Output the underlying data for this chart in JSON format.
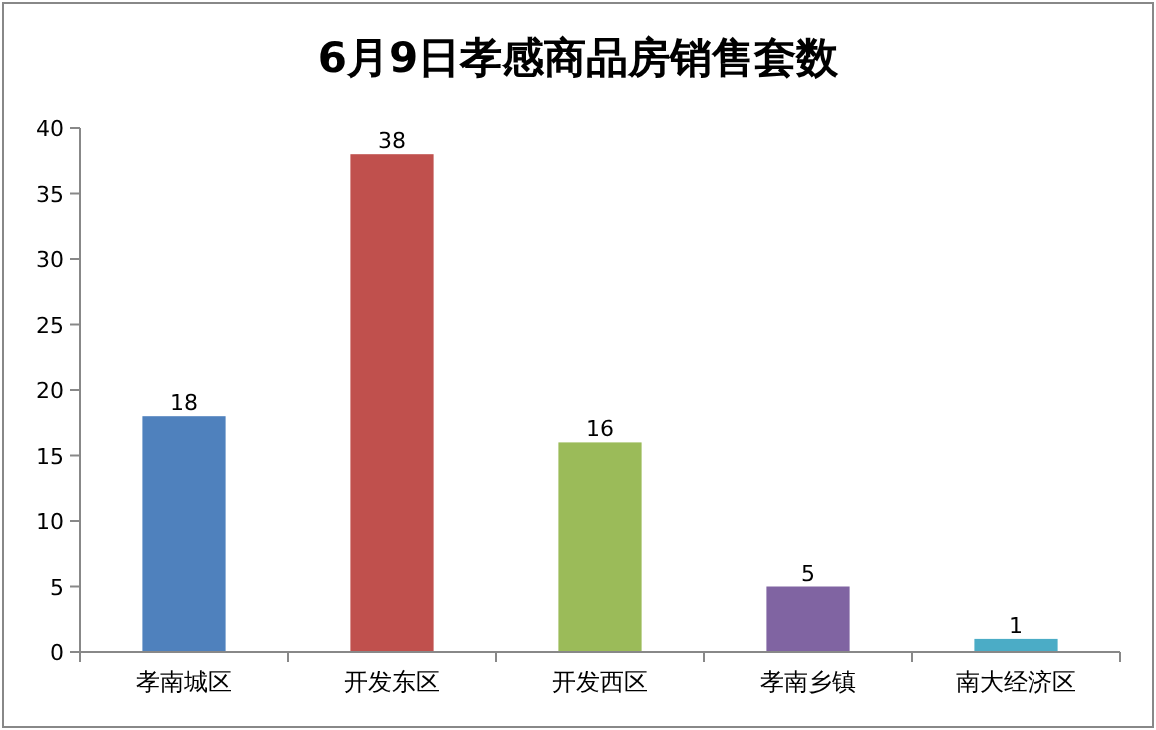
{
  "chart_data": {
    "type": "bar",
    "title": "6月9日孝感商品房销售套数",
    "categories": [
      "孝南城区",
      "开发东区",
      "开发西区",
      "孝南乡镇",
      "南大经济区"
    ],
    "values": [
      18,
      38,
      16,
      5,
      1
    ],
    "colors": [
      "#4f81bd",
      "#c0504d",
      "#9bbb59",
      "#8064a2",
      "#4bacc6"
    ],
    "ylim": [
      0,
      40
    ],
    "yticks": [
      0,
      5,
      10,
      15,
      20,
      25,
      30,
      35,
      40
    ],
    "data_labels": true
  }
}
